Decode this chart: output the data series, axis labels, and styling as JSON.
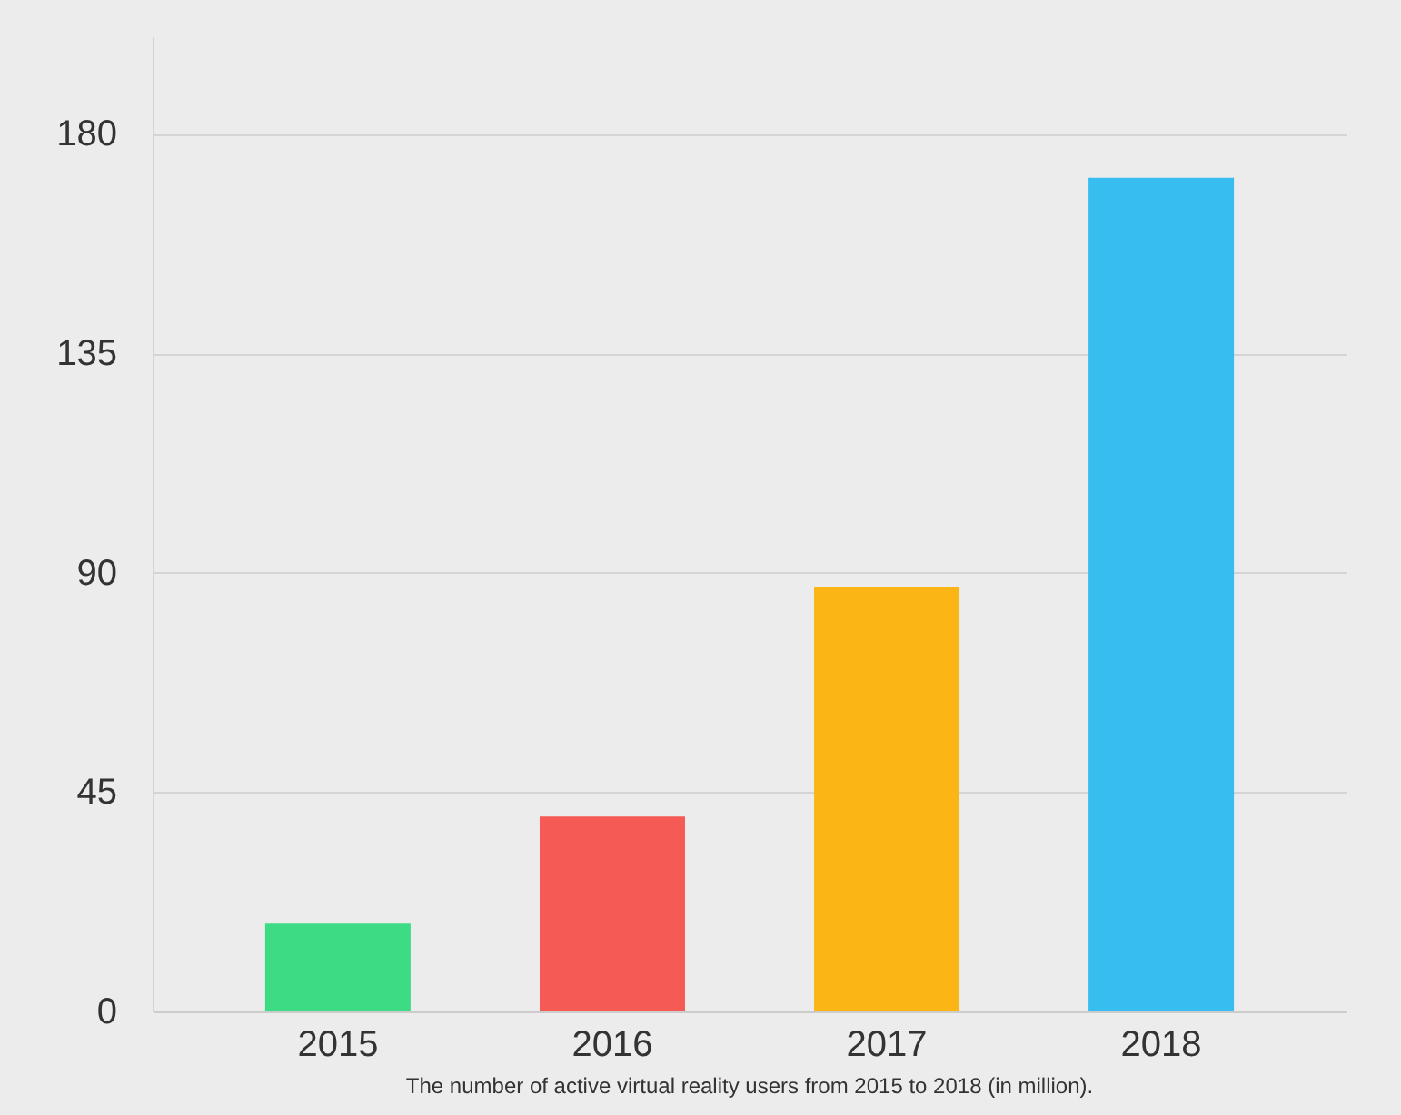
{
  "chart_data": {
    "type": "bar",
    "categories": [
      "2015",
      "2016",
      "2017",
      "2018"
    ],
    "values": [
      18,
      40,
      87,
      171
    ],
    "colors": [
      "#3ddc84",
      "#f55a55",
      "#fbb514",
      "#38bdf0"
    ],
    "ylim": [
      0,
      200
    ],
    "yticks": [
      0,
      45,
      90,
      135,
      180
    ],
    "grid": "y",
    "annotations": [
      "The number of active virtual reality users from 2015 to 2018 (in million)."
    ]
  }
}
